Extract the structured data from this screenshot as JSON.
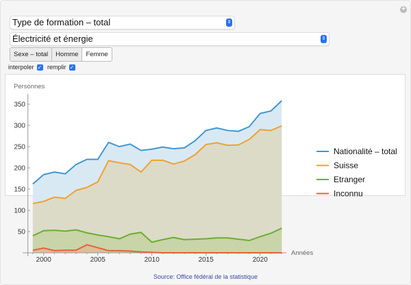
{
  "controls": {
    "formation_select": "Type de formation – total",
    "domain_select": "Électricité et énergie",
    "sex_options": [
      "Sexe – total",
      "Homme",
      "Femme"
    ],
    "selected_sex": "Femme",
    "interpoler_label": "interpoler",
    "interpoler_checked": true,
    "remplir_label": "remplir",
    "remplir_checked": true
  },
  "source": "Source: Office fédéral de la statistique",
  "chart_data": {
    "type": "area",
    "ylabel": "Personnes",
    "xlabel": "Années",
    "ylim": [
      0,
      370
    ],
    "xlim": [
      1998.5,
      2022.5
    ],
    "yticks": [
      50,
      100,
      150,
      200,
      250,
      300,
      350
    ],
    "xticks": [
      2000,
      2005,
      2010,
      2015,
      2020
    ],
    "legend_position": "right",
    "x": [
      1999,
      2000,
      2001,
      2002,
      2003,
      2004,
      2005,
      2006,
      2007,
      2008,
      2009,
      2010,
      2011,
      2012,
      2013,
      2014,
      2015,
      2016,
      2017,
      2018,
      2019,
      2020,
      2021,
      2022
    ],
    "series": [
      {
        "name": "Nationalité – total",
        "color": "#3f97d0",
        "fill": "#d9e9f4",
        "values": [
          162,
          184,
          190,
          186,
          208,
          220,
          220,
          260,
          250,
          256,
          241,
          244,
          249,
          245,
          247,
          264,
          288,
          294,
          288,
          286,
          297,
          328,
          334,
          358
        ]
      },
      {
        "name": "Suisse",
        "color": "#f0a030",
        "fill": "#dcdbc8",
        "values": [
          116,
          121,
          131,
          128,
          147,
          154,
          167,
          217,
          212,
          208,
          190,
          218,
          218,
          209,
          216,
          231,
          255,
          259,
          253,
          254,
          267,
          290,
          288,
          299
        ]
      },
      {
        "name": "Etranger",
        "color": "#6aae30",
        "fill": "#c9d4a8",
        "values": [
          40,
          52,
          53,
          51,
          54,
          47,
          42,
          38,
          33,
          44,
          48,
          25,
          31,
          36,
          31,
          32,
          33,
          35,
          35,
          32,
          29,
          38,
          46,
          58
        ]
      },
      {
        "name": "Inconnu",
        "color": "#e8603a",
        "fill": "#d9bf9a",
        "values": [
          6,
          11,
          5,
          6,
          6,
          19,
          12,
          5,
          5,
          4,
          2,
          1,
          0,
          0,
          0,
          0,
          0,
          0,
          0,
          0,
          0,
          0,
          0,
          0
        ]
      }
    ]
  }
}
